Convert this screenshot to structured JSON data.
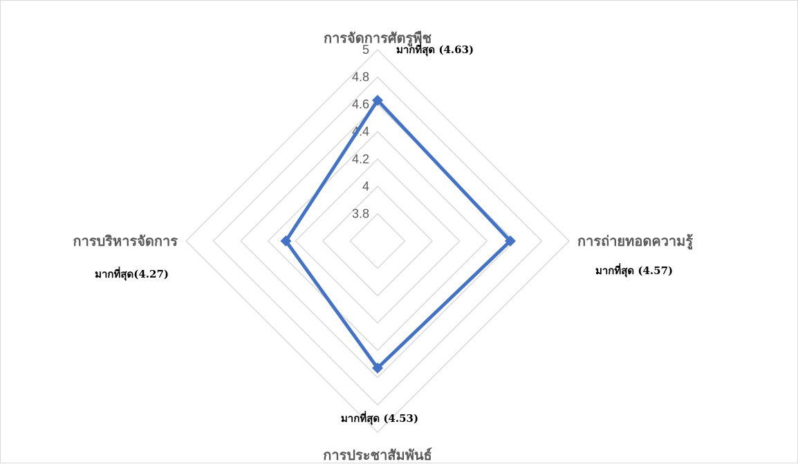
{
  "chart_data": {
    "type": "radar",
    "axes": [
      "การจัดการศัตรูพืช",
      "การถ่ายทอดความรู้",
      "การประชาสัมพันธ์",
      "การบริหารจัดการ"
    ],
    "values": [
      4.63,
      4.57,
      4.53,
      4.27
    ],
    "data_labels": [
      "มากที่สุด (4.63)",
      "มากที่สุด (4.57)",
      "มากที่สุด (4.53)",
      "มากที่สุด(4.27)"
    ],
    "rlim": [
      3.6,
      5.0
    ],
    "ticks": [
      3.8,
      4.0,
      4.2,
      4.4,
      4.6,
      4.8,
      5.0
    ],
    "tick_labels": [
      "3.8",
      "4",
      "4.2",
      "4.4",
      "4.6",
      "4.8",
      "5"
    ],
    "grid": true,
    "legend": "none",
    "colors": {
      "series": "#4472c4",
      "grid": "#d9d9d9",
      "text": "#595959"
    }
  }
}
